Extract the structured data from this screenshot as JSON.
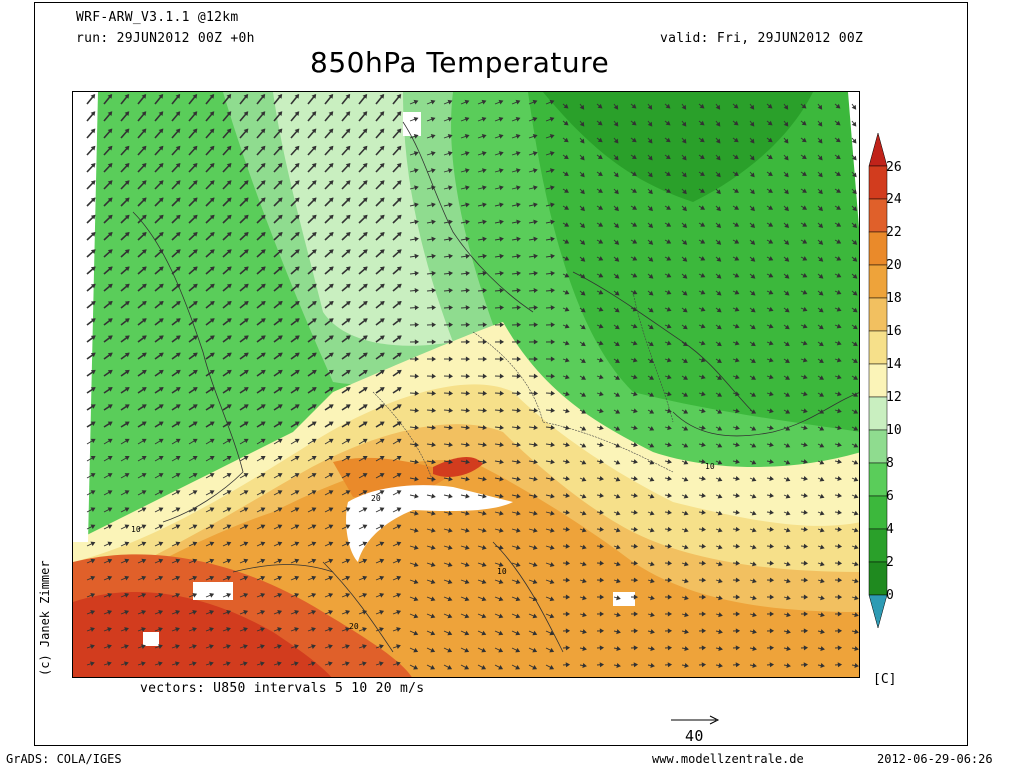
{
  "header": {
    "model": "WRF-ARW_V3.1.1 @12km",
    "run": "run: 29JUN2012 00Z +0h",
    "valid": "valid: Fri, 29JUN2012 00Z",
    "title": "850hPa Temperature"
  },
  "map": {
    "contour_labels": [
      "10",
      "20",
      "20",
      "10",
      "10"
    ],
    "vectors_caption": "vectors: U850 intervals 5 10 20 m/s",
    "reference_vector_label": "40"
  },
  "colorbar": {
    "unit": "[C]",
    "ticks": [
      "26",
      "24",
      "22",
      "20",
      "18",
      "16",
      "14",
      "12",
      "10",
      "8",
      "6",
      "4",
      "2",
      "0"
    ],
    "colors": {
      "below_0": "#2e9bb4",
      "0_2": "#1f8a1f",
      "2_4": "#2aa02a",
      "4_6": "#3cb83c",
      "6_8": "#5acd5a",
      "8_10": "#8fdc8f",
      "10_12": "#c9efc0",
      "12_14": "#fbf4b8",
      "14_16": "#f6e08a",
      "16_18": "#f2c060",
      "18_20": "#eea33a",
      "20_22": "#ea8a2a",
      "22_24": "#e0602a",
      "24_26": "#d23c1e",
      "above_26": "#c0231a"
    }
  },
  "credit": "(c) Janek Zimmer",
  "footer": {
    "left": "GrADS: COLA/IGES",
    "center": "www.modellzentrale.de",
    "right": "2012-06-29-06:26"
  }
}
